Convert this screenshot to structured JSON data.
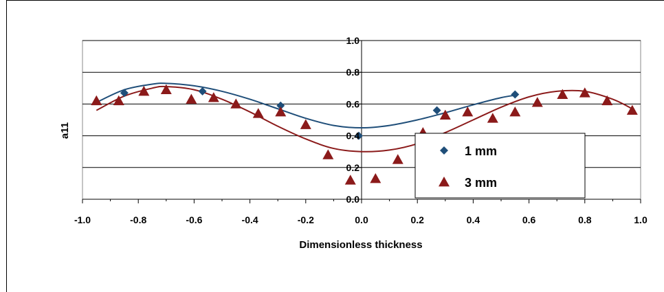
{
  "chart_data": {
    "type": "scatter",
    "title": "",
    "xlabel": "Dimensionless thickness",
    "ylabel": "a11",
    "xlim": [
      -1.0,
      1.0
    ],
    "ylim": [
      0.0,
      1.0
    ],
    "x_ticks": [
      "-1.0",
      "-0.8",
      "-0.6",
      "-0.4",
      "-0.2",
      "0.0",
      "0.2",
      "0.4",
      "0.6",
      "0.8",
      "1.0"
    ],
    "y_ticks": [
      "0.0",
      "0.2",
      "0.4",
      "0.6",
      "0.8",
      "1.0"
    ],
    "grid": "horizontal",
    "legend_position": "bottom-right",
    "series": [
      {
        "name": "1 mm",
        "marker": "diamond",
        "color": "#1f4e79",
        "x": [
          -0.85,
          -0.57,
          -0.29,
          -0.01,
          0.27,
          0.55
        ],
        "y": [
          0.67,
          0.68,
          0.59,
          0.4,
          0.56,
          0.66
        ],
        "fit": {
          "x": [
            -0.95,
            -0.85,
            -0.75,
            -0.7,
            -0.6,
            -0.5,
            -0.4,
            -0.3,
            -0.2,
            -0.1,
            0.0,
            0.1,
            0.2,
            0.3,
            0.4,
            0.5,
            0.55
          ],
          "y": [
            0.61,
            0.69,
            0.725,
            0.73,
            0.715,
            0.68,
            0.63,
            0.57,
            0.51,
            0.465,
            0.45,
            0.465,
            0.5,
            0.545,
            0.595,
            0.64,
            0.655
          ]
        }
      },
      {
        "name": "3 mm",
        "marker": "triangle",
        "color": "#8b1a1a",
        "x": [
          -0.95,
          -0.87,
          -0.78,
          -0.7,
          -0.61,
          -0.53,
          -0.45,
          -0.37,
          -0.29,
          -0.2,
          -0.12,
          -0.04,
          0.05,
          0.13,
          0.22,
          0.3,
          0.38,
          0.47,
          0.55,
          0.63,
          0.72,
          0.8,
          0.88,
          0.97
        ],
        "y": [
          0.62,
          0.62,
          0.68,
          0.69,
          0.63,
          0.64,
          0.6,
          0.54,
          0.55,
          0.47,
          0.28,
          0.12,
          0.13,
          0.25,
          0.42,
          0.53,
          0.55,
          0.51,
          0.55,
          0.61,
          0.66,
          0.67,
          0.62,
          0.56
        ],
        "fit": {
          "x": [
            -0.95,
            -0.85,
            -0.75,
            -0.7,
            -0.6,
            -0.5,
            -0.4,
            -0.3,
            -0.2,
            -0.1,
            0.0,
            0.1,
            0.2,
            0.3,
            0.4,
            0.5,
            0.6,
            0.7,
            0.8,
            0.9,
            0.97
          ],
          "y": [
            0.56,
            0.65,
            0.7,
            0.71,
            0.69,
            0.63,
            0.55,
            0.46,
            0.38,
            0.32,
            0.3,
            0.31,
            0.35,
            0.42,
            0.5,
            0.58,
            0.645,
            0.68,
            0.68,
            0.63,
            0.57
          ]
        }
      }
    ]
  }
}
